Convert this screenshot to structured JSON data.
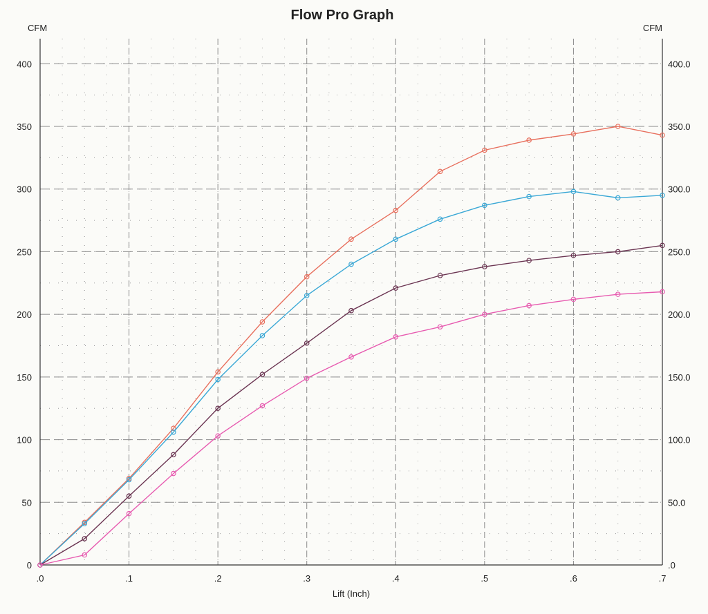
{
  "chart_data": {
    "type": "line",
    "title": "Flow Pro Graph",
    "xlabel": "Lift (Inch)",
    "ylabel_left": "CFM",
    "ylabel_right": "CFM",
    "xlim": [
      0,
      0.7
    ],
    "ylim": [
      0,
      420
    ],
    "x_ticks": [
      0,
      0.1,
      0.2,
      0.3,
      0.4,
      0.5,
      0.6,
      0.7
    ],
    "x_tick_labels": [
      ".0",
      ".1",
      ".2",
      ".3",
      ".4",
      ".5",
      ".6",
      ".7"
    ],
    "y_ticks": [
      0,
      50,
      100,
      150,
      200,
      250,
      300,
      350,
      400
    ],
    "y_tick_labels_left": [
      "0",
      "50",
      "100",
      "150",
      "200",
      "250",
      "300",
      "350",
      "400"
    ],
    "y_tick_labels_right": [
      ".0",
      "50.0",
      "100.0",
      "150.0",
      "200.0",
      "250.0",
      "300.0",
      "350.0",
      "400.0"
    ],
    "grid": true,
    "x": [
      0,
      0.05,
      0.1,
      0.15,
      0.2,
      0.25,
      0.3,
      0.35,
      0.4,
      0.45,
      0.5,
      0.55,
      0.6,
      0.65,
      0.7
    ],
    "series": [
      {
        "color": "#e8705e",
        "values": [
          0,
          34,
          69,
          109,
          154,
          194,
          230,
          260,
          283,
          314,
          331,
          339,
          344,
          350,
          343
        ]
      },
      {
        "color": "#3aa8d6",
        "values": [
          0,
          33,
          68,
          106,
          148,
          183,
          215,
          240,
          260,
          276,
          287,
          294,
          298,
          293,
          295
        ]
      },
      {
        "color": "#6b3552",
        "values": [
          0,
          21,
          55,
          88,
          125,
          152,
          177,
          203,
          221,
          231,
          238,
          243,
          247,
          250,
          255
        ]
      },
      {
        "color": "#e75bb0",
        "values": [
          0,
          8,
          41,
          73,
          103,
          127,
          149,
          166,
          182,
          190,
          200,
          207,
          212,
          216,
          218
        ]
      }
    ]
  }
}
